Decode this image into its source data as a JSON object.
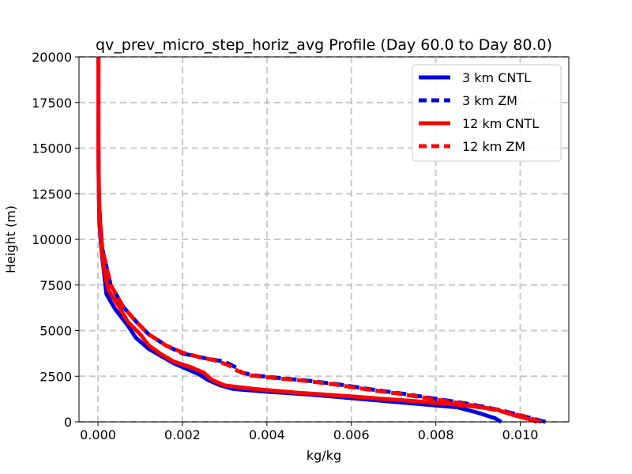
{
  "chart_data": {
    "type": "line",
    "title": "qv_prev_micro_step_horiz_avg Profile (Day 60.0 to Day 80.0)",
    "xlabel": "kg/kg",
    "ylabel": "Height (m)",
    "xlim": [
      -0.00045,
      0.01115
    ],
    "ylim": [
      0,
      20000
    ],
    "xticks": [
      0.0,
      0.002,
      0.004,
      0.006,
      0.008,
      0.01
    ],
    "xtick_labels": [
      "0.000",
      "0.002",
      "0.004",
      "0.006",
      "0.008",
      "0.010"
    ],
    "yticks": [
      0,
      2500,
      5000,
      7500,
      10000,
      12500,
      15000,
      17500,
      20000
    ],
    "ytick_labels": [
      "0",
      "2500",
      "5000",
      "7500",
      "10000",
      "12500",
      "15000",
      "17500",
      "20000"
    ],
    "grid": true,
    "legend_position": "top-right",
    "series": [
      {
        "name": "3 km CNTL",
        "color": "#0000dd",
        "style": "solid",
        "points": [
          [
            0.00955,
            0
          ],
          [
            0.0094,
            200
          ],
          [
            0.009,
            500
          ],
          [
            0.0085,
            800
          ],
          [
            0.007,
            1100
          ],
          [
            0.006,
            1300
          ],
          [
            0.005,
            1500
          ],
          [
            0.004,
            1650
          ],
          [
            0.0032,
            1800
          ],
          [
            0.0029,
            2000
          ],
          [
            0.0026,
            2300
          ],
          [
            0.0024,
            2600
          ],
          [
            0.0021,
            2900
          ],
          [
            0.0018,
            3200
          ],
          [
            0.0015,
            3600
          ],
          [
            0.0012,
            4000
          ],
          [
            0.0009,
            4600
          ],
          [
            0.0007,
            5300
          ],
          [
            0.0004,
            6200
          ],
          [
            0.0002,
            7000
          ],
          [
            0.00015,
            8000
          ],
          [
            0.0001,
            9000
          ],
          [
            6e-05,
            10000
          ],
          [
            3e-05,
            11000
          ],
          [
            2e-05,
            12500
          ],
          [
            1e-05,
            15000
          ],
          [
            1e-05,
            17500
          ],
          [
            1e-05,
            20000
          ]
        ]
      },
      {
        "name": "3 km ZM",
        "color": "#0000dd",
        "style": "dashed",
        "points": [
          [
            0.0106,
            0
          ],
          [
            0.0101,
            300
          ],
          [
            0.0096,
            600
          ],
          [
            0.0091,
            850
          ],
          [
            0.0086,
            1050
          ],
          [
            0.0079,
            1300
          ],
          [
            0.0072,
            1550
          ],
          [
            0.0064,
            1800
          ],
          [
            0.0057,
            2050
          ],
          [
            0.005,
            2250
          ],
          [
            0.0043,
            2400
          ],
          [
            0.0037,
            2550
          ],
          [
            0.0034,
            2700
          ],
          [
            0.0033,
            2950
          ],
          [
            0.003,
            3300
          ],
          [
            0.0025,
            3500
          ],
          [
            0.002,
            3750
          ],
          [
            0.0016,
            4200
          ],
          [
            0.0012,
            4800
          ],
          [
            0.0009,
            5500
          ],
          [
            0.0006,
            6300
          ],
          [
            0.0003,
            7500
          ],
          [
            0.0002,
            8500
          ],
          [
            0.0001,
            9500
          ],
          [
            5e-05,
            11000
          ],
          [
            2e-05,
            12500
          ],
          [
            1e-05,
            15000
          ],
          [
            1e-05,
            17500
          ],
          [
            1e-05,
            20000
          ]
        ]
      },
      {
        "name": "12 km CNTL",
        "color": "#ff0000",
        "style": "solid",
        "points": [
          [
            0.0104,
            0
          ],
          [
            0.0102,
            150
          ],
          [
            0.0098,
            400
          ],
          [
            0.0094,
            700
          ],
          [
            0.0085,
            950
          ],
          [
            0.0074,
            1150
          ],
          [
            0.006,
            1400
          ],
          [
            0.0047,
            1600
          ],
          [
            0.0037,
            1800
          ],
          [
            0.003,
            2000
          ],
          [
            0.0027,
            2300
          ],
          [
            0.0025,
            2700
          ],
          [
            0.0022,
            3000
          ],
          [
            0.0018,
            3300
          ],
          [
            0.0015,
            3700
          ],
          [
            0.0012,
            4200
          ],
          [
            0.001,
            4800
          ],
          [
            0.0007,
            5500
          ],
          [
            0.0005,
            6300
          ],
          [
            0.00025,
            7200
          ],
          [
            0.00015,
            8200
          ],
          [
            0.0001,
            9200
          ],
          [
            6e-05,
            10200
          ],
          [
            3e-05,
            11500
          ],
          [
            2e-05,
            13000
          ],
          [
            1e-05,
            15000
          ],
          [
            1e-05,
            17500
          ],
          [
            1e-05,
            20000
          ]
        ]
      },
      {
        "name": "12 km ZM",
        "color": "#ff0000",
        "style": "dashed",
        "points": [
          [
            0.0105,
            0
          ],
          [
            0.0101,
            300
          ],
          [
            0.0095,
            600
          ],
          [
            0.009,
            850
          ],
          [
            0.0085,
            1050
          ],
          [
            0.0078,
            1300
          ],
          [
            0.0071,
            1550
          ],
          [
            0.0063,
            1800
          ],
          [
            0.0056,
            2050
          ],
          [
            0.0049,
            2250
          ],
          [
            0.0042,
            2400
          ],
          [
            0.0036,
            2550
          ],
          [
            0.0033,
            2800
          ],
          [
            0.0031,
            3100
          ],
          [
            0.0028,
            3350
          ],
          [
            0.0024,
            3550
          ],
          [
            0.002,
            3800
          ],
          [
            0.0016,
            4200
          ],
          [
            0.0012,
            4800
          ],
          [
            0.0009,
            5500
          ],
          [
            0.0006,
            6300
          ],
          [
            0.0003,
            7500
          ],
          [
            0.0002,
            8500
          ],
          [
            0.0001,
            9500
          ],
          [
            5e-05,
            11000
          ],
          [
            2e-05,
            12500
          ],
          [
            1e-05,
            15000
          ],
          [
            1e-05,
            17500
          ],
          [
            1e-05,
            20000
          ]
        ]
      }
    ]
  }
}
